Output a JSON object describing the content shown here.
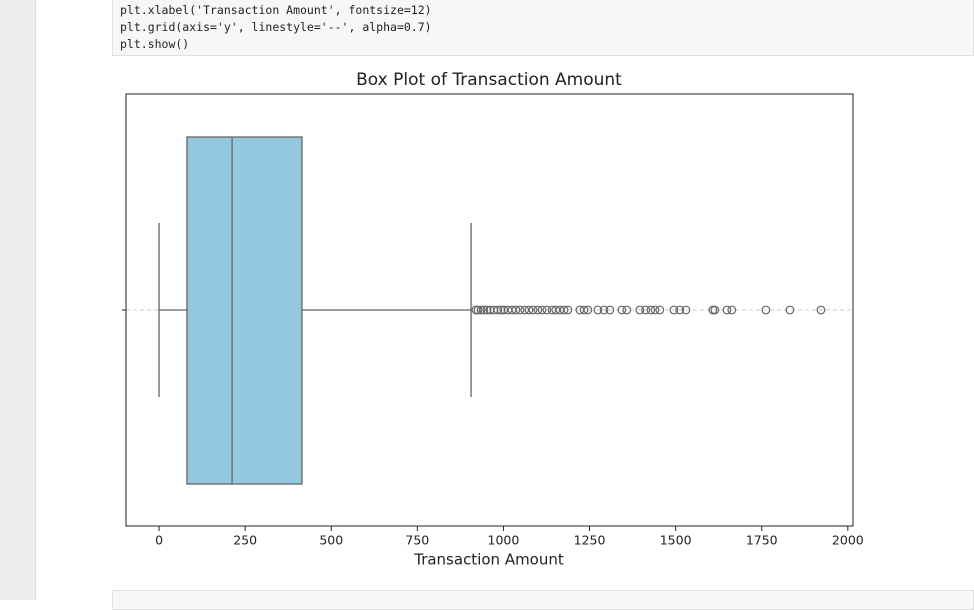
{
  "code_cell": {
    "lines": [
      "plt.xlabel('Transaction Amount', fontsize=12)",
      "plt.grid(axis='y', linestyle='--', alpha=0.7)",
      "plt.show()"
    ]
  },
  "chart_data": {
    "type": "box",
    "title": "Box Plot of Transaction Amount",
    "xlabel": "Transaction Amount",
    "orientation": "horizontal",
    "color": "#93c8df",
    "box": {
      "whislo": 0,
      "q1": 81,
      "med": 212,
      "q3": 415,
      "whishi": 906
    },
    "outliers": [
      920,
      926,
      935,
      943,
      952,
      961,
      972,
      984,
      993,
      1001,
      1013,
      1025,
      1036,
      1048,
      1062,
      1074,
      1086,
      1100,
      1112,
      1126,
      1141,
      1152,
      1164,
      1176,
      1187,
      1222,
      1234,
      1245,
      1274,
      1292,
      1309,
      1344,
      1358,
      1396,
      1413,
      1428,
      1440,
      1454,
      1495,
      1512,
      1530,
      1608,
      1614,
      1649,
      1663,
      1762,
      1832,
      1922
    ],
    "xlim": [
      -96,
      2015
    ],
    "xticks": [
      0,
      250,
      500,
      750,
      1000,
      1250,
      1500,
      1750,
      2000
    ],
    "grid": true
  }
}
